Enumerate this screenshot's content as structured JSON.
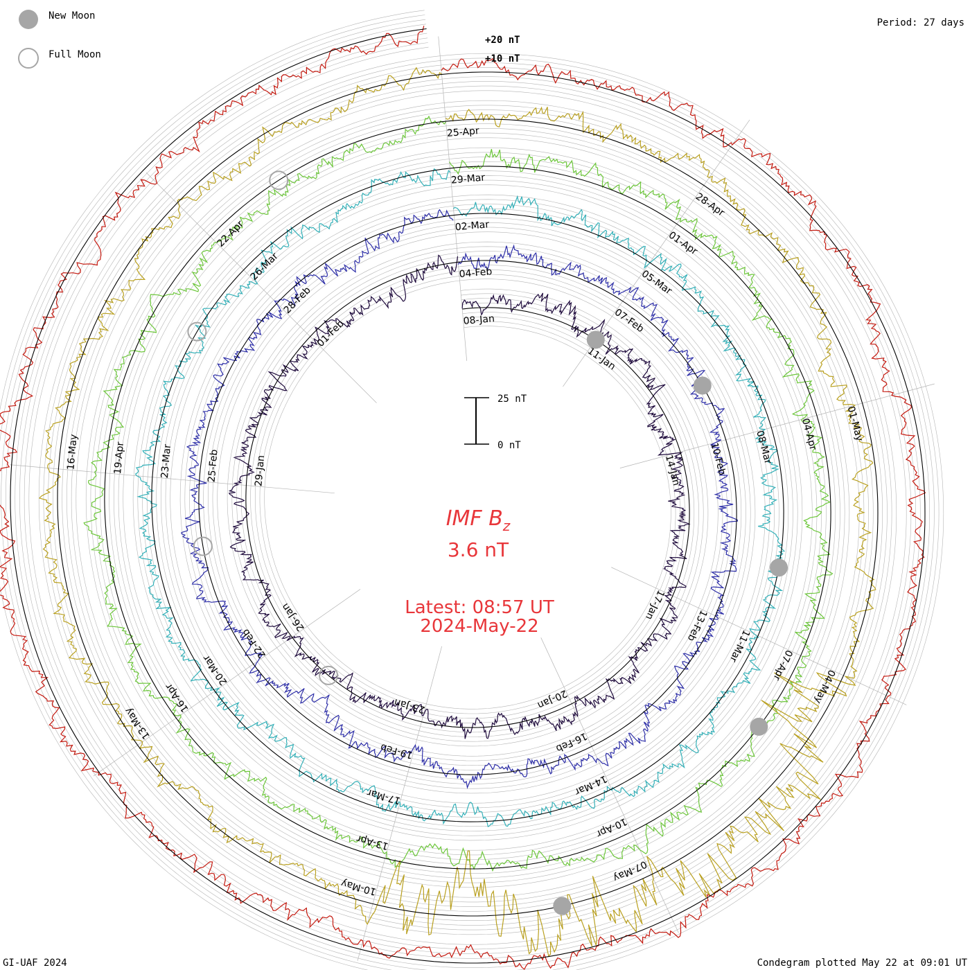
{
  "header": {
    "period": "Period: 27 days",
    "legend": [
      {
        "label": "New Moon",
        "kind": "new"
      },
      {
        "label": "Full Moon",
        "kind": "full"
      }
    ],
    "scale_labels": [
      "+20 nT",
      "+10 nT"
    ]
  },
  "center": {
    "title_main": "IMF B",
    "title_sub": "z",
    "value": "3.6 nT",
    "latest": "Latest: 08:57 UT",
    "date": "2024-May-22",
    "scale_top": "25 nT",
    "scale_bottom": "0 nT"
  },
  "footer": {
    "left": "GI-UAF 2024",
    "right": "Condegram plotted May 22 at 09:01 UT"
  },
  "colors": {
    "background": "#ffffff",
    "grid": "#b4b4b4",
    "baseline": "#000000",
    "text_accent": "#e8363a",
    "moon": "#a6a6a6"
  },
  "chart_data": {
    "type": "condegram",
    "title": "IMF Bz",
    "period_days": 27,
    "units": "nT",
    "rotations": [
      {
        "name": "rot1",
        "start": "2024-01-08",
        "color": "#1e0a3c",
        "labels": [
          "08-Jan",
          "11-Jan",
          "14-Jan",
          "17-Jan",
          "20-Jan",
          "23-Jan",
          "26-Jan",
          "29-Jan",
          "01-Feb"
        ]
      },
      {
        "name": "rot2",
        "start": "2024-02-04",
        "color": "#2d2ea8",
        "labels": [
          "04-Feb",
          "07-Feb",
          "10-Feb",
          "13-Feb",
          "16-Feb",
          "19-Feb",
          "22-Feb",
          "25-Feb",
          "28-Feb"
        ]
      },
      {
        "name": "rot3",
        "start": "2024-03-02",
        "color": "#33b0b8",
        "labels": [
          "02-Mar",
          "05-Mar",
          "08-Mar",
          "11-Mar",
          "14-Mar",
          "17-Mar",
          "20-Mar",
          "23-Mar",
          "26-Mar"
        ]
      },
      {
        "name": "rot4",
        "start": "2024-03-29",
        "color": "#6cc63a",
        "labels": [
          "29-Mar",
          "01-Apr",
          "04-Apr",
          "07-Apr",
          "10-Apr",
          "13-Apr",
          "16-Apr",
          "19-Apr",
          "22-Apr"
        ]
      },
      {
        "name": "rot5",
        "start": "2024-04-25",
        "color": "#b9a020",
        "labels": [
          "25-Apr",
          "28-Apr",
          "01-May",
          "04-May",
          "07-May",
          "10-May",
          "13-May",
          "16-May"
        ]
      },
      {
        "name": "rot6",
        "start": "2024-05-22",
        "color": "#c41a10",
        "labels": []
      }
    ],
    "new_moons": [
      "2024-01-11",
      "2024-02-09",
      "2024-03-10",
      "2024-04-08",
      "2024-05-08"
    ],
    "full_moons": [
      "2024-01-25",
      "2024-02-24",
      "2024-03-25",
      "2024-04-23"
    ],
    "scale_nT": [
      0,
      25
    ],
    "spiral_ticks_nT": [
      10,
      20
    ]
  }
}
